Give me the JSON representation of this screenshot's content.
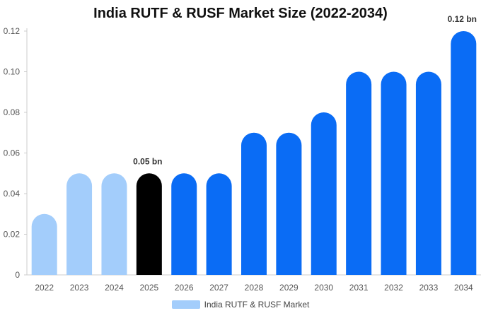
{
  "chart_data": {
    "type": "bar",
    "title": "India RUTF & RUSF Market Size (2022-2034)",
    "categories": [
      "2022",
      "2023",
      "2024",
      "2025",
      "2026",
      "2027",
      "2028",
      "2029",
      "2030",
      "2031",
      "2032",
      "2033",
      "2034"
    ],
    "series": [
      {
        "name": "India RUTF & RUSF Market",
        "values": [
          0.03,
          0.05,
          0.05,
          0.05,
          0.05,
          0.05,
          0.07,
          0.07,
          0.08,
          0.1,
          0.1,
          0.1,
          0.12
        ]
      }
    ],
    "ylim": [
      0,
      0.12
    ],
    "yticks": [
      "0",
      "0.02",
      "0.04",
      "0.06",
      "0.08",
      "0.10",
      "0.12"
    ],
    "annotations": [
      {
        "category": "2025",
        "text": "0.05 bn"
      },
      {
        "category": "2034",
        "text": "0.12 bn"
      }
    ],
    "legend": "bottom-center",
    "grid": false,
    "colors": {
      "historical": "#a3cdfb",
      "base_year": "#000000",
      "forecast": "#0a6cf5",
      "legend_swatch": "#a3cdfb"
    },
    "bar_color_groups": [
      "historical",
      "historical",
      "historical",
      "base_year",
      "forecast",
      "forecast",
      "forecast",
      "forecast",
      "forecast",
      "forecast",
      "forecast",
      "forecast",
      "forecast"
    ]
  }
}
